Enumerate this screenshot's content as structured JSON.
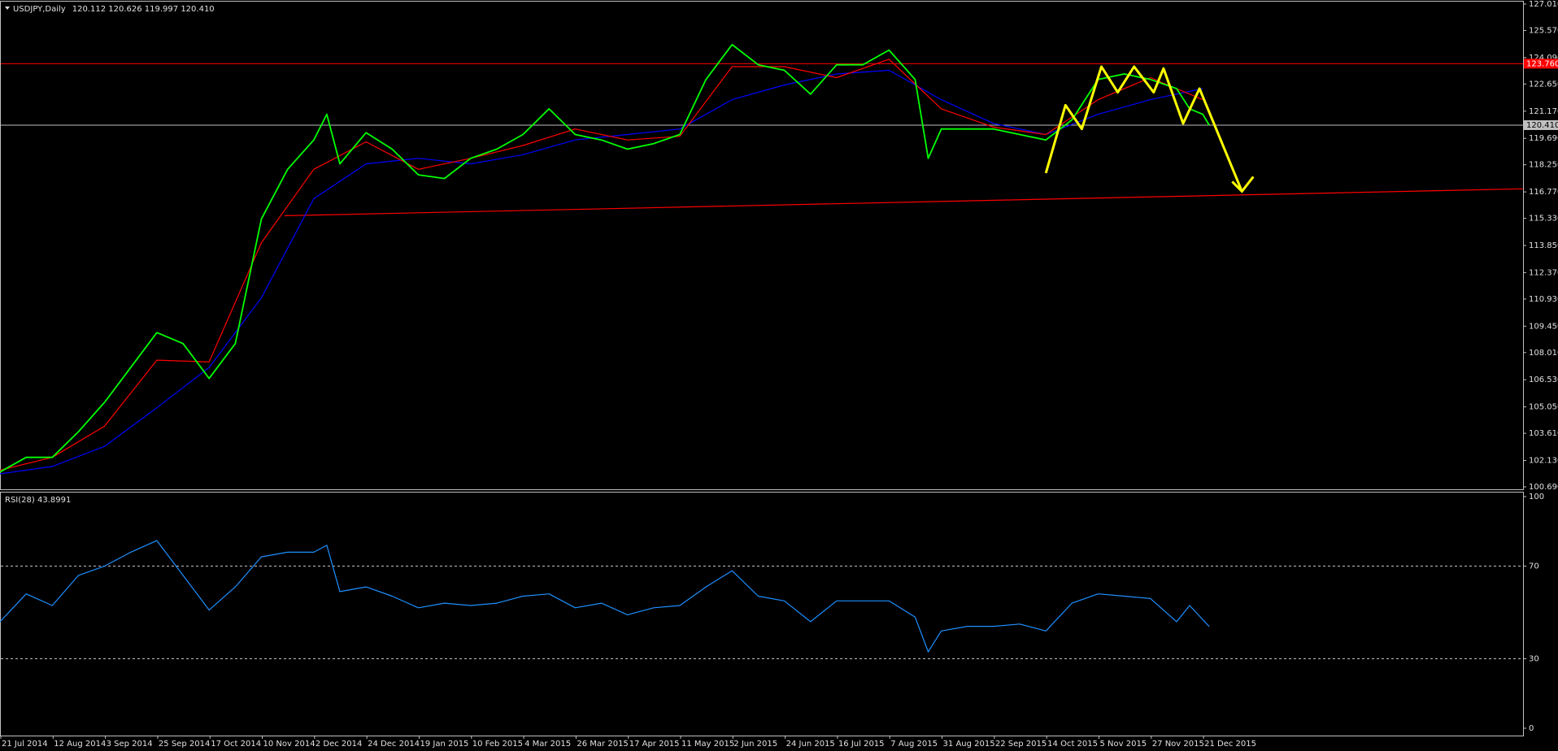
{
  "chart_data": [
    {
      "type": "line",
      "title": "USDJPY,Daily",
      "subtitle": "120.112 120.626 119.997 120.410",
      "xlim": [
        0,
        466
      ],
      "ylim": [
        100.69,
        127.01
      ],
      "grid": false,
      "xticks": [
        {
          "value": 0,
          "label": "21 Jul 2014"
        },
        {
          "value": 16,
          "label": "12 Aug 2014"
        },
        {
          "value": 32,
          "label": "3 Sep 2014"
        },
        {
          "value": 48,
          "label": "25 Sep 2014"
        },
        {
          "value": 64,
          "label": "17 Oct 2014"
        },
        {
          "value": 80,
          "label": "10 Nov 2014"
        },
        {
          "value": 96,
          "label": "2 Dec 2014"
        },
        {
          "value": 112,
          "label": "24 Dec 2014"
        },
        {
          "value": 128,
          "label": "19 Jan 2015"
        },
        {
          "value": 144,
          "label": "10 Feb 2015"
        },
        {
          "value": 160,
          "label": "4 Mar 2015"
        },
        {
          "value": 176,
          "label": "26 Mar 2015"
        },
        {
          "value": 192,
          "label": "17 Apr 2015"
        },
        {
          "value": 208,
          "label": "11 May 2015"
        },
        {
          "value": 224,
          "label": "2 Jun 2015"
        },
        {
          "value": 240,
          "label": "24 Jun 2015"
        },
        {
          "value": 256,
          "label": "16 Jul 2015"
        },
        {
          "value": 272,
          "label": "7 Aug 2015"
        },
        {
          "value": 288,
          "label": "31 Aug 2015"
        },
        {
          "value": 304,
          "label": "22 Sep 2015"
        },
        {
          "value": 320,
          "label": "14 Oct 2015"
        },
        {
          "value": 336,
          "label": "5 Nov 2015"
        },
        {
          "value": 352,
          "label": "27 Nov 2015"
        },
        {
          "value": 368,
          "label": "21 Dec 2015"
        }
      ],
      "yticks": [
        {
          "value": 127.01,
          "label": "127.010"
        },
        {
          "value": 125.57,
          "label": "125.570"
        },
        {
          "value": 124.09,
          "label": "124.090"
        },
        {
          "value": 122.65,
          "label": "122.650"
        },
        {
          "value": 121.17,
          "label": "121.170"
        },
        {
          "value": 119.69,
          "label": "119.690"
        },
        {
          "value": 118.25,
          "label": "118.250"
        },
        {
          "value": 116.77,
          "label": "116.770"
        },
        {
          "value": 115.33,
          "label": "115.330"
        },
        {
          "value": 113.85,
          "label": "113.850"
        },
        {
          "value": 112.37,
          "label": "112.370"
        },
        {
          "value": 110.93,
          "label": "110.930"
        },
        {
          "value": 109.45,
          "label": "109.450"
        },
        {
          "value": 108.01,
          "label": "108.010"
        },
        {
          "value": 106.53,
          "label": "106.530"
        },
        {
          "value": 105.05,
          "label": "105.050"
        },
        {
          "value": 103.61,
          "label": "103.610"
        },
        {
          "value": 102.13,
          "label": "102.130"
        },
        {
          "value": 100.69,
          "label": "100.690"
        }
      ],
      "hlines": [
        {
          "value": 123.76,
          "label": "123.760",
          "color": "#ff0000"
        },
        {
          "value": 120.41,
          "label": "120.410",
          "color": "#c0c0c0"
        }
      ],
      "trendline": {
        "color": "#ff0000",
        "x": [
          87,
          466
        ],
        "values": [
          115.47,
          116.94
        ]
      },
      "series": [
        {
          "color": "#0000ff",
          "x": [
            0,
            16,
            32,
            48,
            64,
            80,
            96,
            112,
            128,
            144,
            160,
            176,
            192,
            208,
            224,
            240,
            256,
            272,
            288,
            304,
            320,
            336,
            352,
            368
          ],
          "values": [
            101.4,
            101.8,
            102.9,
            105.0,
            107.2,
            111.0,
            116.4,
            118.3,
            118.6,
            118.3,
            118.8,
            119.6,
            119.9,
            120.2,
            121.8,
            122.6,
            123.2,
            123.4,
            121.8,
            120.5,
            119.9,
            121.0,
            121.8,
            122.4
          ]
        },
        {
          "color": "#ff0000",
          "x": [
            0,
            16,
            32,
            48,
            64,
            80,
            96,
            112,
            128,
            144,
            160,
            176,
            192,
            208,
            224,
            240,
            256,
            272,
            288,
            304,
            320,
            336,
            352,
            368
          ],
          "values": [
            101.6,
            102.3,
            104.0,
            107.6,
            107.5,
            114.0,
            118.0,
            119.5,
            118.0,
            118.6,
            119.3,
            120.2,
            119.6,
            119.8,
            123.6,
            123.6,
            123.0,
            124.0,
            121.3,
            120.3,
            119.9,
            121.8,
            123.0,
            121.8
          ]
        },
        {
          "color": "#00ff00",
          "x": [
            0,
            8,
            16,
            24,
            32,
            40,
            48,
            56,
            64,
            72,
            80,
            88,
            96,
            100,
            104,
            112,
            120,
            128,
            136,
            144,
            152,
            160,
            168,
            176,
            184,
            192,
            200,
            208,
            216,
            224,
            232,
            240,
            248,
            256,
            264,
            272,
            280,
            284,
            288,
            296,
            304,
            312,
            320,
            328,
            336,
            344,
            352,
            360,
            364,
            368,
            370
          ],
          "values": [
            101.5,
            102.3,
            102.3,
            103.7,
            105.3,
            107.2,
            109.1,
            108.5,
            106.6,
            108.5,
            115.3,
            118.0,
            119.6,
            121.0,
            118.3,
            120.0,
            119.1,
            117.7,
            117.5,
            118.6,
            119.1,
            119.9,
            121.3,
            119.9,
            119.6,
            119.1,
            119.4,
            119.9,
            122.9,
            124.8,
            123.7,
            123.4,
            122.1,
            123.7,
            123.7,
            124.5,
            122.9,
            118.6,
            120.2,
            120.2,
            120.2,
            119.9,
            119.6,
            120.7,
            122.9,
            123.2,
            122.9,
            122.4,
            121.3,
            121.0,
            120.41
          ]
        }
      ],
      "zigzag": {
        "color": "#ffff00",
        "x": [
          320,
          326,
          331,
          337,
          342,
          347,
          353,
          356,
          362,
          367,
          380
        ],
        "values": [
          117.8,
          121.5,
          120.2,
          123.6,
          122.2,
          123.6,
          122.2,
          123.5,
          120.5,
          122.4,
          116.8
        ]
      }
    },
    {
      "type": "line",
      "title": "RSI(28) 43.8991",
      "xlim": [
        0,
        466
      ],
      "ylim": [
        0,
        100
      ],
      "grid": "dashed",
      "yticks": [
        100,
        70,
        30,
        0
      ],
      "series": [
        {
          "color": "#1e90ff",
          "x": [
            0,
            8,
            16,
            24,
            32,
            40,
            48,
            56,
            64,
            72,
            80,
            88,
            96,
            100,
            104,
            112,
            120,
            128,
            136,
            144,
            152,
            160,
            168,
            176,
            184,
            192,
            200,
            208,
            216,
            224,
            232,
            240,
            248,
            256,
            264,
            272,
            280,
            284,
            288,
            296,
            304,
            312,
            320,
            328,
            336,
            344,
            352,
            360,
            364,
            370
          ],
          "values": [
            46,
            58,
            53,
            66,
            70,
            76,
            81,
            66,
            51,
            61,
            74,
            76,
            76,
            79,
            59,
            61,
            57,
            52,
            54,
            53,
            54,
            57,
            58,
            52,
            54,
            49,
            52,
            53,
            61,
            68,
            57,
            55,
            46,
            55,
            55,
            55,
            48,
            33,
            42,
            44,
            44,
            45,
            42,
            54,
            58,
            57,
            56,
            46,
            53,
            43.9
          ]
        }
      ]
    }
  ]
}
